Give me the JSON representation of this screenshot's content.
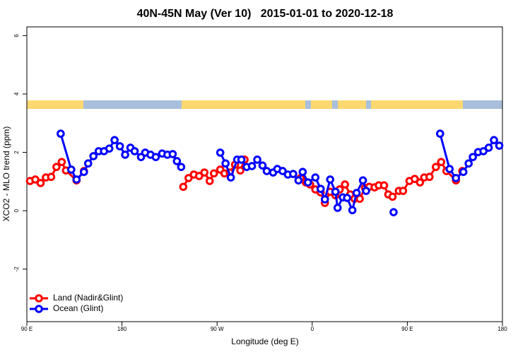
{
  "chart_data": {
    "type": "line",
    "title": "40N-45N May (Ver 10)   2015-01-01 to 2020-12-18",
    "xlabel": "Longitude (deg E)",
    "ylabel": "XCO2 - MLO trend (ppm)",
    "xlim": [
      90,
      540
    ],
    "ylim": [
      -3.8,
      6.3
    ],
    "xticks": [
      {
        "value": 90,
        "label": "90 E"
      },
      180,
      {
        "value": 270,
        "label": "90 W"
      },
      {
        "value": 360,
        "label": "0"
      },
      {
        "value": 450,
        "label": "90 E"
      },
      {
        "value": 540,
        "label": "180"
      }
    ],
    "yticks": [
      -2,
      0,
      2,
      4,
      6
    ],
    "legend": "bottom-left",
    "series": [
      {
        "name": "Land (Nadir&Glint)",
        "color": "#ff0000",
        "x": [
          93,
          98,
          103,
          108,
          113,
          118,
          123,
          127,
          137,
          144,
          190,
          238,
          243,
          248,
          253,
          258,
          263,
          267,
          273,
          277,
          282,
          287,
          292,
          296,
          320,
          349,
          354,
          358,
          363,
          368,
          372,
          377,
          382,
          386,
          391,
          396,
          400,
          405,
          410,
          414,
          419,
          423,
          428,
          432,
          436,
          442,
          446,
          452,
          457,
          462,
          466,
          471,
          477,
          482,
          487,
          496,
          502
        ],
        "values": [
          1.02,
          1.07,
          0.95,
          1.14,
          1.16,
          1.5,
          1.67,
          1.38,
          1.04,
          1.36,
          null,
          0.82,
          1.12,
          1.24,
          1.19,
          1.31,
          1.02,
          1.28,
          1.41,
          1.28,
          1.31,
          1.58,
          1.38,
          1.75,
          null,
          1.12,
          0.97,
          0.9,
          0.73,
          0.63,
          0.27,
          0.65,
          0.53,
          0.73,
          0.9,
          0.56,
          0.41,
          0.41,
          0.78,
          0.82,
          0.8,
          0.87,
          0.87,
          0.56,
          0.48,
          0.68,
          0.68,
          1.02,
          1.09,
          0.97,
          1.14,
          1.16,
          1.5,
          1.67,
          1.36,
          1.04,
          1.36
        ]
      },
      {
        "name": "Ocean (Glint)",
        "color": "#0000ff",
        "x": [
          122,
          132,
          137,
          144,
          148,
          153,
          158,
          163,
          168,
          173,
          178,
          183,
          188,
          192,
          198,
          202,
          207,
          212,
          218,
          223,
          228,
          232,
          236,
          255,
          273,
          278,
          283,
          289,
          293,
          298,
          303,
          308,
          313,
          317,
          323,
          327,
          332,
          337,
          342,
          347,
          351,
          356,
          363,
          368,
          372,
          377,
          382,
          384,
          389,
          393,
          398,
          402,
          408,
          411,
          425,
          437,
          460,
          481,
          490,
          496,
          503,
          508,
          512,
          517,
          522,
          527,
          532,
          537
        ],
        "values": [
          2.64,
          1.41,
          1.07,
          1.33,
          1.62,
          1.87,
          2.04,
          2.04,
          2.13,
          2.42,
          2.21,
          1.92,
          2.16,
          2.04,
          1.84,
          1.99,
          1.92,
          1.84,
          1.96,
          1.92,
          1.94,
          1.7,
          1.5,
          null,
          1.99,
          1.62,
          1.14,
          1.75,
          1.75,
          1.5,
          1.53,
          1.75,
          1.55,
          1.36,
          1.31,
          1.43,
          1.36,
          1.24,
          1.26,
          1.04,
          1.33,
          0.97,
          1.14,
          0.75,
          0.39,
          1.07,
          0.65,
          0.1,
          0.46,
          0.44,
          0.02,
          0.61,
          1.04,
          0.68,
          null,
          -0.05,
          null,
          2.64,
          1.43,
          1.12,
          1.33,
          1.62,
          1.84,
          2.01,
          2.04,
          2.16,
          2.42,
          2.23
        ]
      }
    ]
  }
}
